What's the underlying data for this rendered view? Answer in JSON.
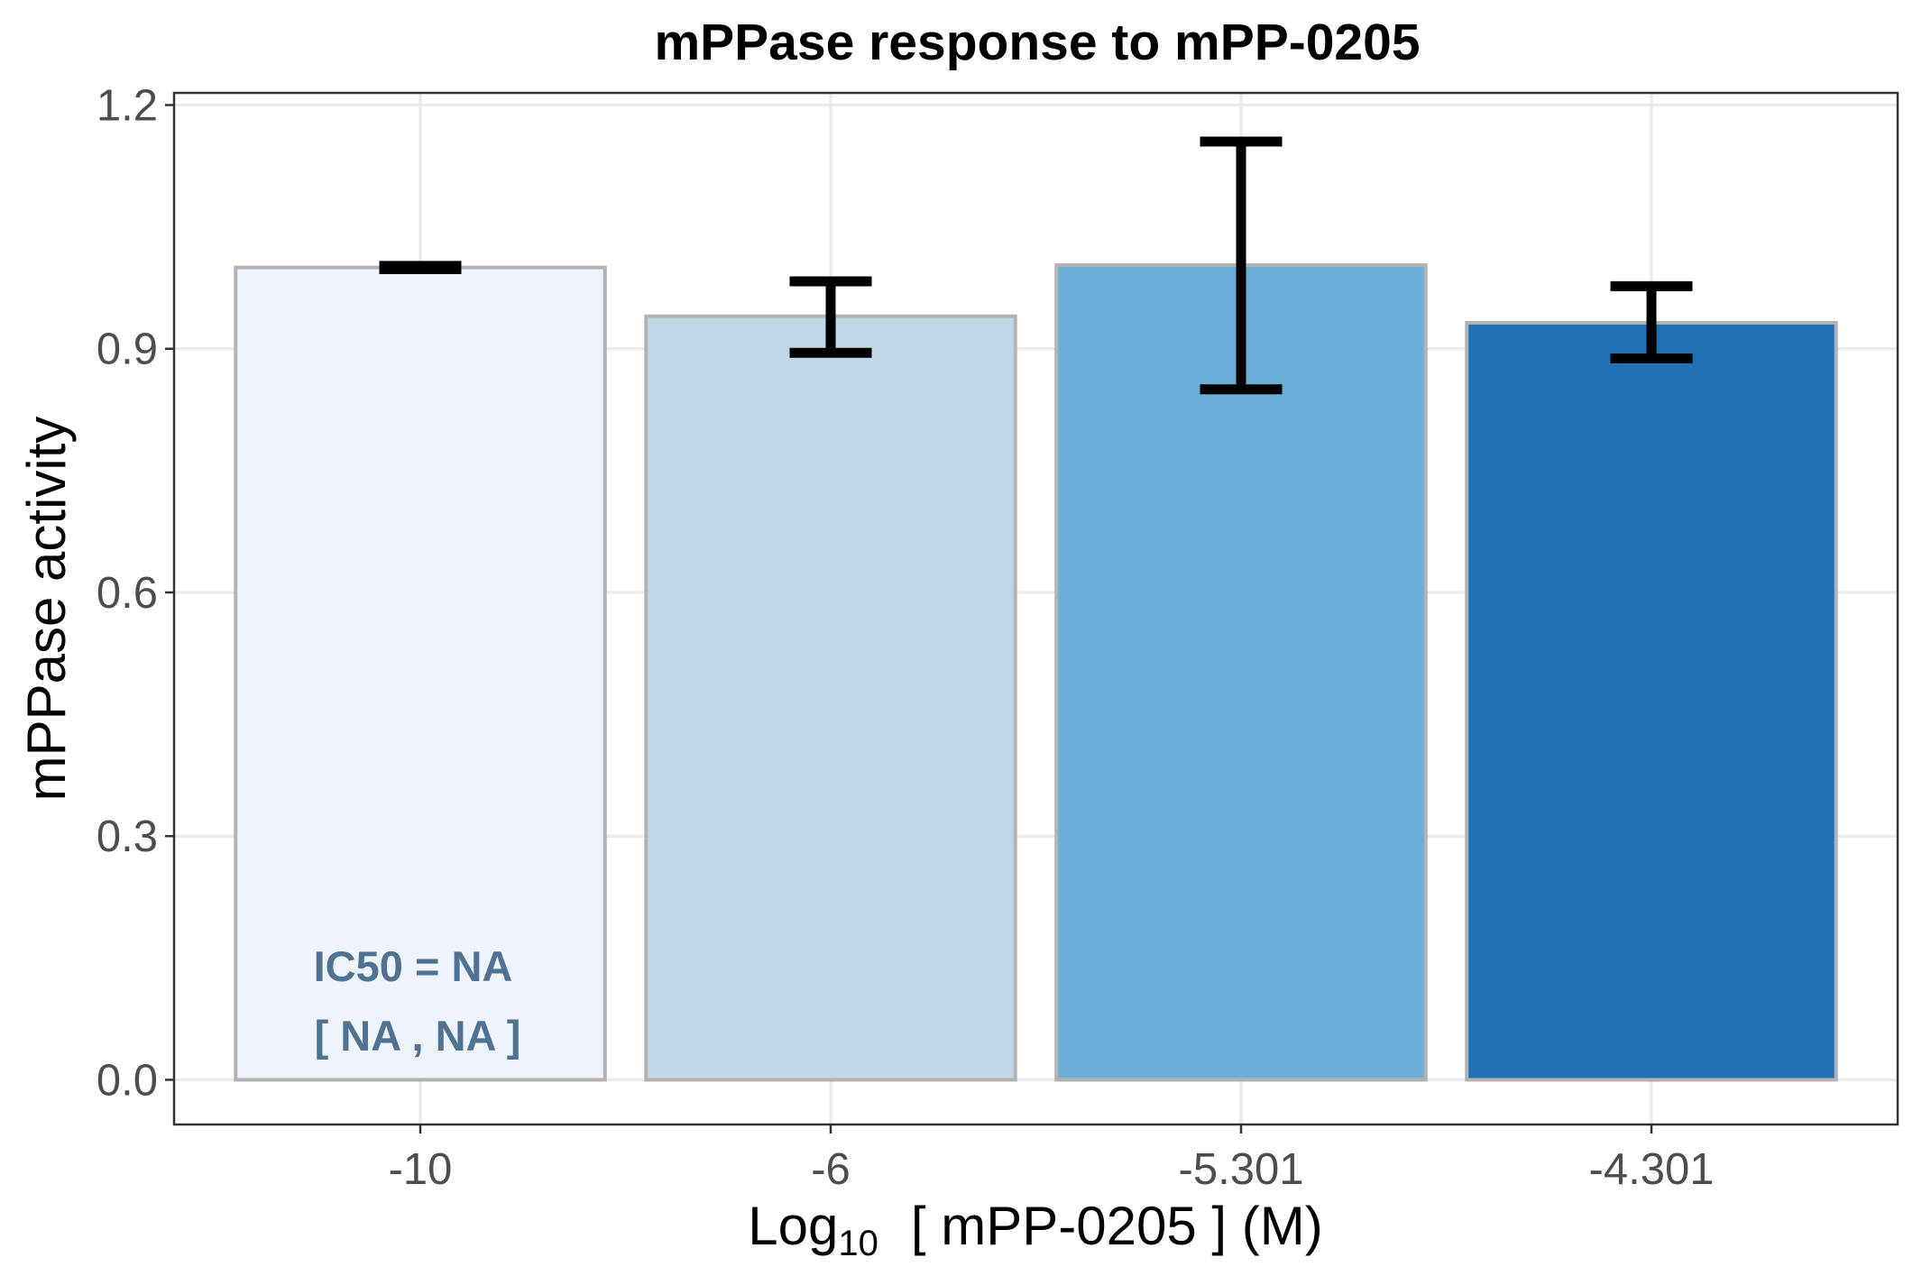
{
  "chart_data": {
    "type": "bar",
    "title": "mPPase response to mPP-0205",
    "xlabel": {
      "prefix": "Log",
      "subscript": "10",
      "suffix": "[ mPP-0205 ] (M)"
    },
    "ylabel": "mPPase activity",
    "categories": [
      "-10",
      "-6",
      "-5.301",
      "-4.301"
    ],
    "values": [
      1.0,
      0.94,
      1.003,
      0.932
    ],
    "error_bars": [
      {
        "low": 0.998,
        "high": 1.002
      },
      {
        "low": 0.895,
        "high": 0.983
      },
      {
        "low": 0.85,
        "high": 1.155
      },
      {
        "low": 0.888,
        "high": 0.977
      }
    ],
    "bar_colors": [
      "#eef3fe",
      "#bfd7e7",
      "#6baed6",
      "#2171b5"
    ],
    "ylim": [
      -0.055,
      1.215
    ],
    "yticks": [
      0.0,
      0.3,
      0.6,
      0.9,
      1.2
    ],
    "ytick_labels": [
      "0.0",
      "0.3",
      "0.6",
      "0.9",
      "1.2"
    ],
    "grid": true,
    "annotation": {
      "line1": "IC50 = NA",
      "line2": "[ NA , NA ]"
    }
  }
}
